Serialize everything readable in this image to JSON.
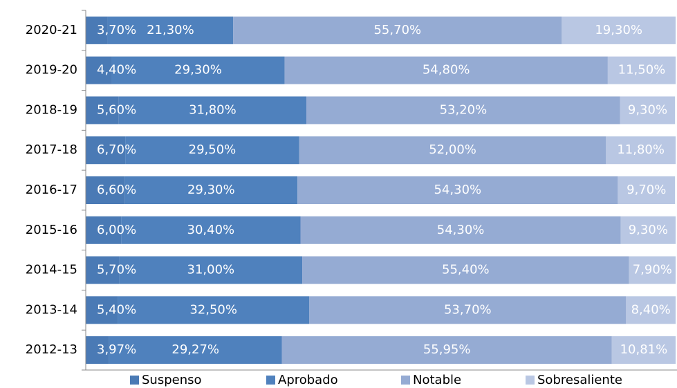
{
  "chart_data": {
    "type": "stacked-barh",
    "categories": [
      "2020-21",
      "2019-20",
      "2018-19",
      "2017-18",
      "2016-17",
      "2015-16",
      "2014-15",
      "2013-14",
      "2012-13"
    ],
    "xlim": [
      0,
      100
    ],
    "legend": "bottom",
    "series": [
      {
        "name": "Suspenso",
        "color": "#4a7ab5",
        "values": [
          3.7,
          4.4,
          5.6,
          6.7,
          6.6,
          6.0,
          5.7,
          5.4,
          3.97
        ],
        "value_labels": [
          "3,70%",
          "4,40%",
          "5,60%",
          "6,70%",
          "6,60%",
          "6,00%",
          "5,70%",
          "5,40%",
          "3,97%"
        ]
      },
      {
        "name": "Aprobado",
        "color": "#4f81bd",
        "values": [
          21.3,
          29.3,
          31.8,
          29.5,
          29.3,
          30.4,
          31.0,
          32.5,
          29.27
        ],
        "value_labels": [
          "21,30%",
          "29,30%",
          "31,80%",
          "29,50%",
          "29,30%",
          "30,40%",
          "31,00%",
          "32,50%",
          "29,27%"
        ]
      },
      {
        "name": "Notable",
        "color": "#95abd3",
        "values": [
          55.7,
          54.8,
          53.2,
          52.0,
          54.3,
          54.3,
          55.4,
          53.7,
          55.95
        ],
        "value_labels": [
          "55,70%",
          "54,80%",
          "53,20%",
          "52,00%",
          "54,30%",
          "54,30%",
          "55,40%",
          "53,70%",
          "55,95%"
        ]
      },
      {
        "name": "Sobresaliente",
        "color": "#b9c7e3",
        "values": [
          19.3,
          11.5,
          9.3,
          11.8,
          9.7,
          9.3,
          7.9,
          8.4,
          10.81
        ],
        "value_labels": [
          "19,30%",
          "11,50%",
          "9,30%",
          "11,80%",
          "9,70%",
          "9,30%",
          "7,90%",
          "8,40%",
          "10,81%"
        ]
      }
    ]
  }
}
